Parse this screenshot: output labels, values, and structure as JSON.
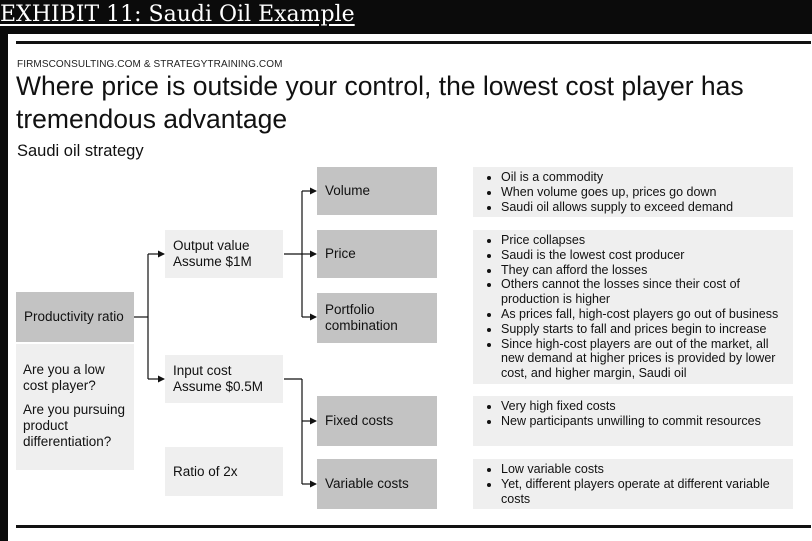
{
  "exhibit_title": "EXHIBIT 11: Saudi Oil Example",
  "source": "FIRMSCONSULTING.COM & STRATEGYTRAINING.COM",
  "headline": "Where price is outside your control, the lowest cost player has tremendous advantage",
  "subtitle": "Saudi oil strategy",
  "tree": {
    "root": "Productivity ratio",
    "root_questions": [
      "Are you a low cost player?",
      "Are you pursuing product differentiation?"
    ],
    "output_value": [
      "Output value",
      "Assume $1M"
    ],
    "input_cost": [
      "Input cost",
      "Assume $0.5M"
    ],
    "ratio": "Ratio of 2x",
    "volume": "Volume",
    "price": "Price",
    "portfolio": [
      "Portfolio",
      "combination"
    ],
    "fixed_costs": "Fixed costs",
    "variable_costs": "Variable costs"
  },
  "notes": {
    "volume": [
      "Oil is a commodity",
      "When volume goes up, prices go down",
      "Saudi oil allows supply to exceed demand"
    ],
    "price": [
      "Price collapses",
      "Saudi is the lowest cost producer",
      "They can afford the losses",
      "Others cannot the losses since their cost of production is higher",
      "As prices fall, high-cost players go out of business",
      "Supply starts to fall and prices begin to increase",
      "Since high-cost players are out of the market, all new demand at higher prices is provided by lower cost, and higher margin, Saudi oil"
    ],
    "fixed_costs": [
      "Very high fixed costs",
      "New participants unwilling to commit resources"
    ],
    "variable_costs": [
      "Low variable costs",
      "Yet, different players operate at different variable costs"
    ]
  }
}
